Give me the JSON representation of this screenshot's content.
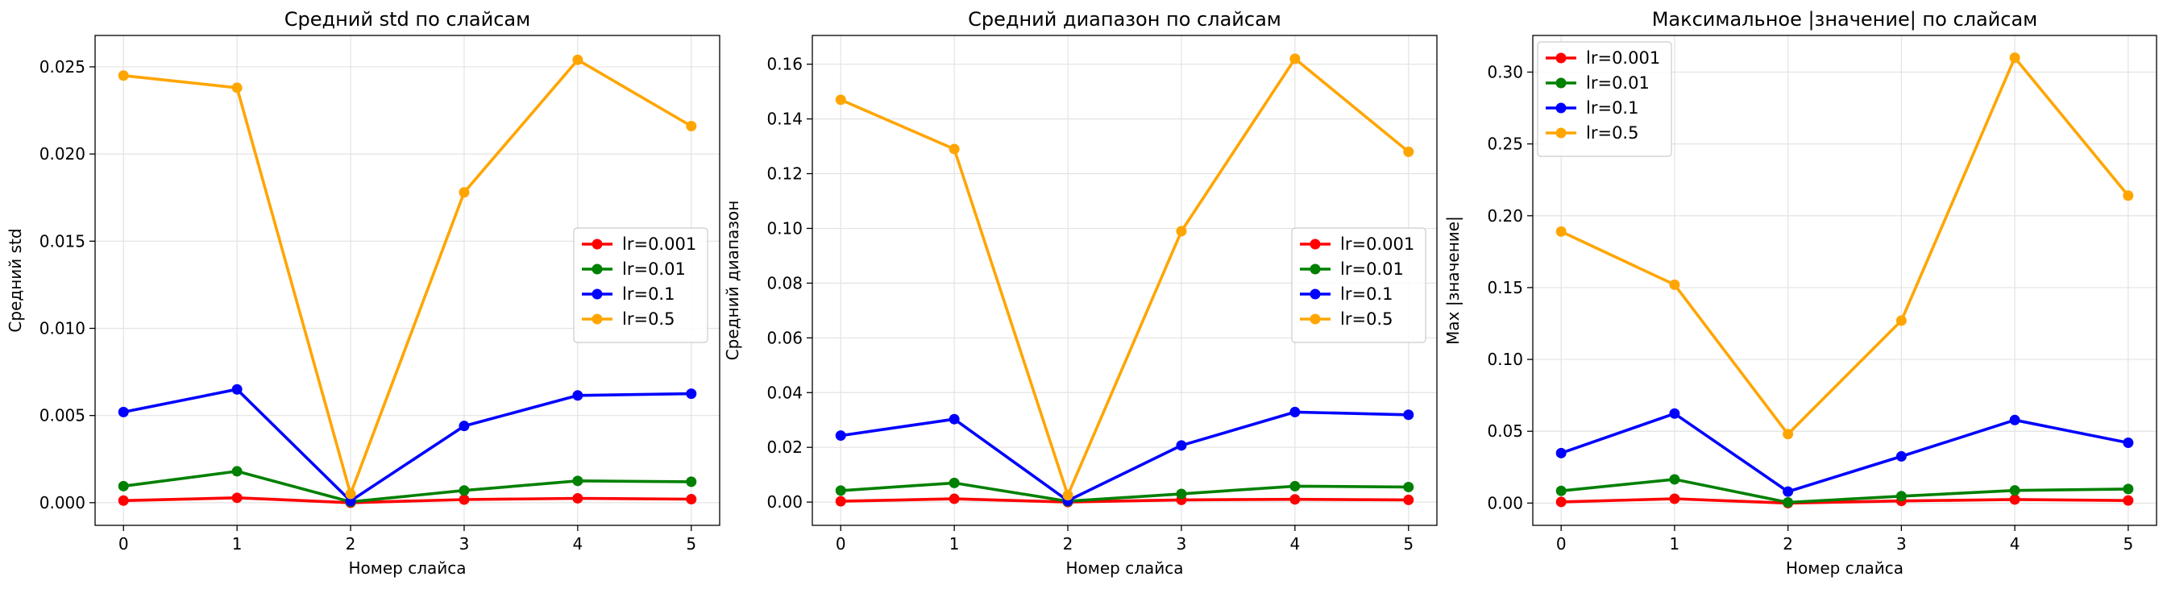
{
  "chart_data": [
    {
      "type": "line",
      "title": "Средний std по слайсам",
      "xlabel": "Номер слайса",
      "ylabel": "Средний std",
      "x": [
        0,
        1,
        2,
        3,
        4,
        5
      ],
      "xticks": [
        "0",
        "1",
        "2",
        "3",
        "4",
        "5"
      ],
      "yticks": [
        "0.000",
        "0.005",
        "0.010",
        "0.015",
        "0.020",
        "0.025"
      ],
      "yticks_values": [
        0,
        0.005,
        0.01,
        0.015,
        0.02,
        0.025
      ],
      "xlim": [
        -0.25,
        5.25
      ],
      "ylim": [
        -0.0013,
        0.0268
      ],
      "grid": true,
      "legend_position": "center-right",
      "series": [
        {
          "name": "lr=0.001",
          "color": "#ff0000",
          "values": [
            0.00012,
            0.00028,
            0.0,
            0.00018,
            0.00025,
            0.0002
          ]
        },
        {
          "name": "lr=0.01",
          "color": "#008000",
          "values": [
            0.00095,
            0.0018,
            5e-05,
            0.0007,
            0.00125,
            0.0012
          ]
        },
        {
          "name": "lr=0.1",
          "color": "#0000ff",
          "values": [
            0.0052,
            0.0065,
            0.0001,
            0.0044,
            0.00615,
            0.00625
          ]
        },
        {
          "name": "lr=0.5",
          "color": "#ffa500",
          "values": [
            0.0245,
            0.0238,
            0.0005,
            0.0178,
            0.0254,
            0.0216
          ]
        }
      ]
    },
    {
      "type": "line",
      "title": "Средний диапазон по слайсам",
      "xlabel": "Номер слайса",
      "ylabel": "Средний диапазон",
      "x": [
        0,
        1,
        2,
        3,
        4,
        5
      ],
      "xticks": [
        "0",
        "1",
        "2",
        "3",
        "4",
        "5"
      ],
      "yticks": [
        "0.00",
        "0.02",
        "0.04",
        "0.06",
        "0.08",
        "0.10",
        "0.12",
        "0.14",
        "0.16"
      ],
      "yticks_values": [
        0,
        0.02,
        0.04,
        0.06,
        0.08,
        0.1,
        0.12,
        0.14,
        0.16
      ],
      "xlim": [
        -0.25,
        5.25
      ],
      "ylim": [
        -0.0085,
        0.1705
      ],
      "grid": true,
      "legend_position": "center-right",
      "series": [
        {
          "name": "lr=0.001",
          "color": "#ff0000",
          "values": [
            0.0003,
            0.0012,
            0.0,
            0.0008,
            0.001,
            0.0008
          ]
        },
        {
          "name": "lr=0.01",
          "color": "#008000",
          "values": [
            0.0042,
            0.007,
            0.0003,
            0.003,
            0.0058,
            0.0055
          ]
        },
        {
          "name": "lr=0.1",
          "color": "#0000ff",
          "values": [
            0.0243,
            0.0303,
            0.0005,
            0.0207,
            0.0329,
            0.0319
          ]
        },
        {
          "name": "lr=0.5",
          "color": "#ffa500",
          "values": [
            0.147,
            0.129,
            0.0025,
            0.099,
            0.162,
            0.128
          ]
        }
      ]
    },
    {
      "type": "line",
      "title": "Максимальное |значение| по слайсам",
      "xlabel": "Номер слайса",
      "ylabel": "Max |значение|",
      "x": [
        0,
        1,
        2,
        3,
        4,
        5
      ],
      "xticks": [
        "0",
        "1",
        "2",
        "3",
        "4",
        "5"
      ],
      "yticks": [
        "0.00",
        "0.05",
        "0.10",
        "0.15",
        "0.20",
        "0.25",
        "0.30"
      ],
      "yticks_values": [
        0,
        0.05,
        0.1,
        0.15,
        0.2,
        0.25,
        0.3
      ],
      "xlim": [
        -0.25,
        5.25
      ],
      "ylim": [
        -0.0155,
        0.3255
      ],
      "grid": true,
      "legend_position": "upper-left",
      "series": [
        {
          "name": "lr=0.001",
          "color": "#ff0000",
          "values": [
            0.0008,
            0.003,
            0.0,
            0.0015,
            0.0025,
            0.0018
          ]
        },
        {
          "name": "lr=0.01",
          "color": "#008000",
          "values": [
            0.0085,
            0.0165,
            0.0005,
            0.0048,
            0.0088,
            0.0098
          ]
        },
        {
          "name": "lr=0.1",
          "color": "#0000ff",
          "values": [
            0.0348,
            0.0623,
            0.008,
            0.0325,
            0.0578,
            0.042
          ]
        },
        {
          "name": "lr=0.5",
          "color": "#ffa500",
          "values": [
            0.189,
            0.152,
            0.048,
            0.127,
            0.31,
            0.214
          ]
        }
      ]
    }
  ]
}
